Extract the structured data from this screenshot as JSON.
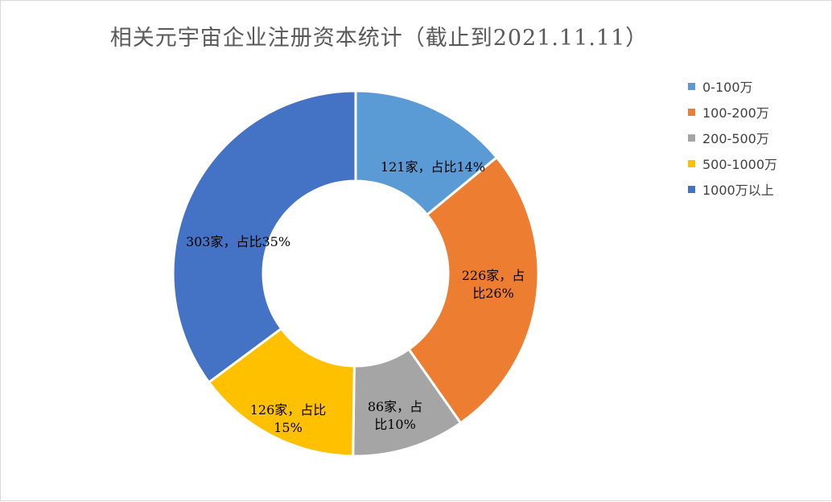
{
  "chart_data": {
    "type": "donut",
    "title": "相关元宇宙企业注册资本统计（截止到2021.11.11）",
    "categories": [
      "0-100万",
      "100-200万",
      "200-500万",
      "500-1000万",
      "1000万以上"
    ],
    "values": [
      121,
      226,
      86,
      126,
      303
    ],
    "percents": [
      14,
      26,
      10,
      15,
      35
    ],
    "colors": [
      "#5b9bd5",
      "#ed7d31",
      "#a5a5a5",
      "#ffc000",
      "#4472c4"
    ],
    "data_labels": [
      [
        "121家，占比14%"
      ],
      [
        "226家，占",
        "比26%"
      ],
      [
        "86家，占",
        "比10%"
      ],
      [
        "126家，占比",
        "15%"
      ],
      [
        "303家，占比35%"
      ]
    ],
    "legend_position": "right"
  }
}
